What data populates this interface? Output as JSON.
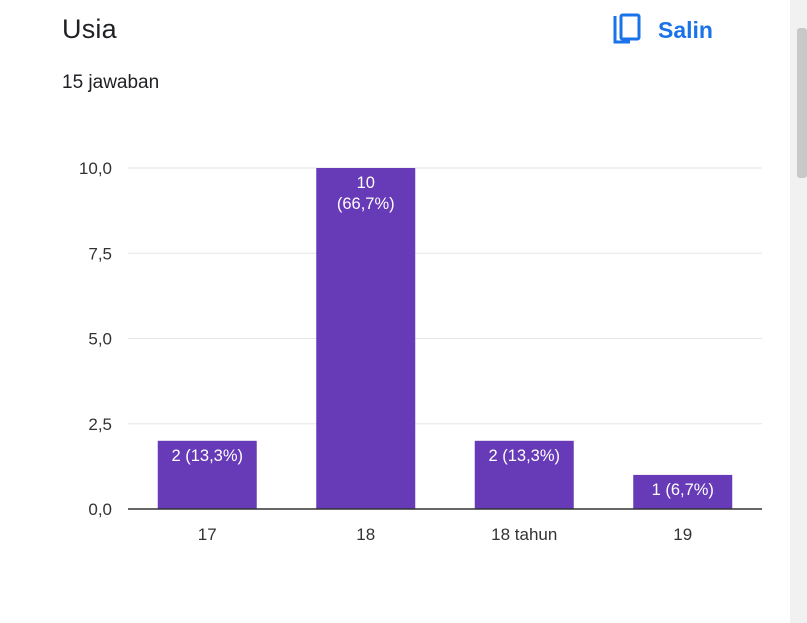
{
  "header": {
    "title": "Usia",
    "responses": "15 jawaban",
    "copy_label": "Salin"
  },
  "colors": {
    "bar": "#673ab7",
    "accent": "#1a73e8",
    "grid": "#e6e6e6",
    "axis": "#333333",
    "text": "#202124",
    "bar_label": "#ffffff"
  },
  "icons": {
    "copy": "copy-icon"
  },
  "chart_data": {
    "type": "bar",
    "categories": [
      "17",
      "18",
      "18 tahun",
      "19"
    ],
    "values": [
      2,
      10,
      2,
      1
    ],
    "data_labels": [
      [
        "2 (13,3%)"
      ],
      [
        "10",
        "(66,7%)"
      ],
      [
        "2 (13,3%)"
      ],
      [
        "1 (6,7%)"
      ]
    ],
    "yticks": [
      "0,0",
      "2,5",
      "5,0",
      "7,5",
      "10,0"
    ],
    "ylim": [
      0,
      10
    ],
    "grid": true,
    "legend": "none",
    "title": "",
    "xlabel": "",
    "ylabel": ""
  }
}
